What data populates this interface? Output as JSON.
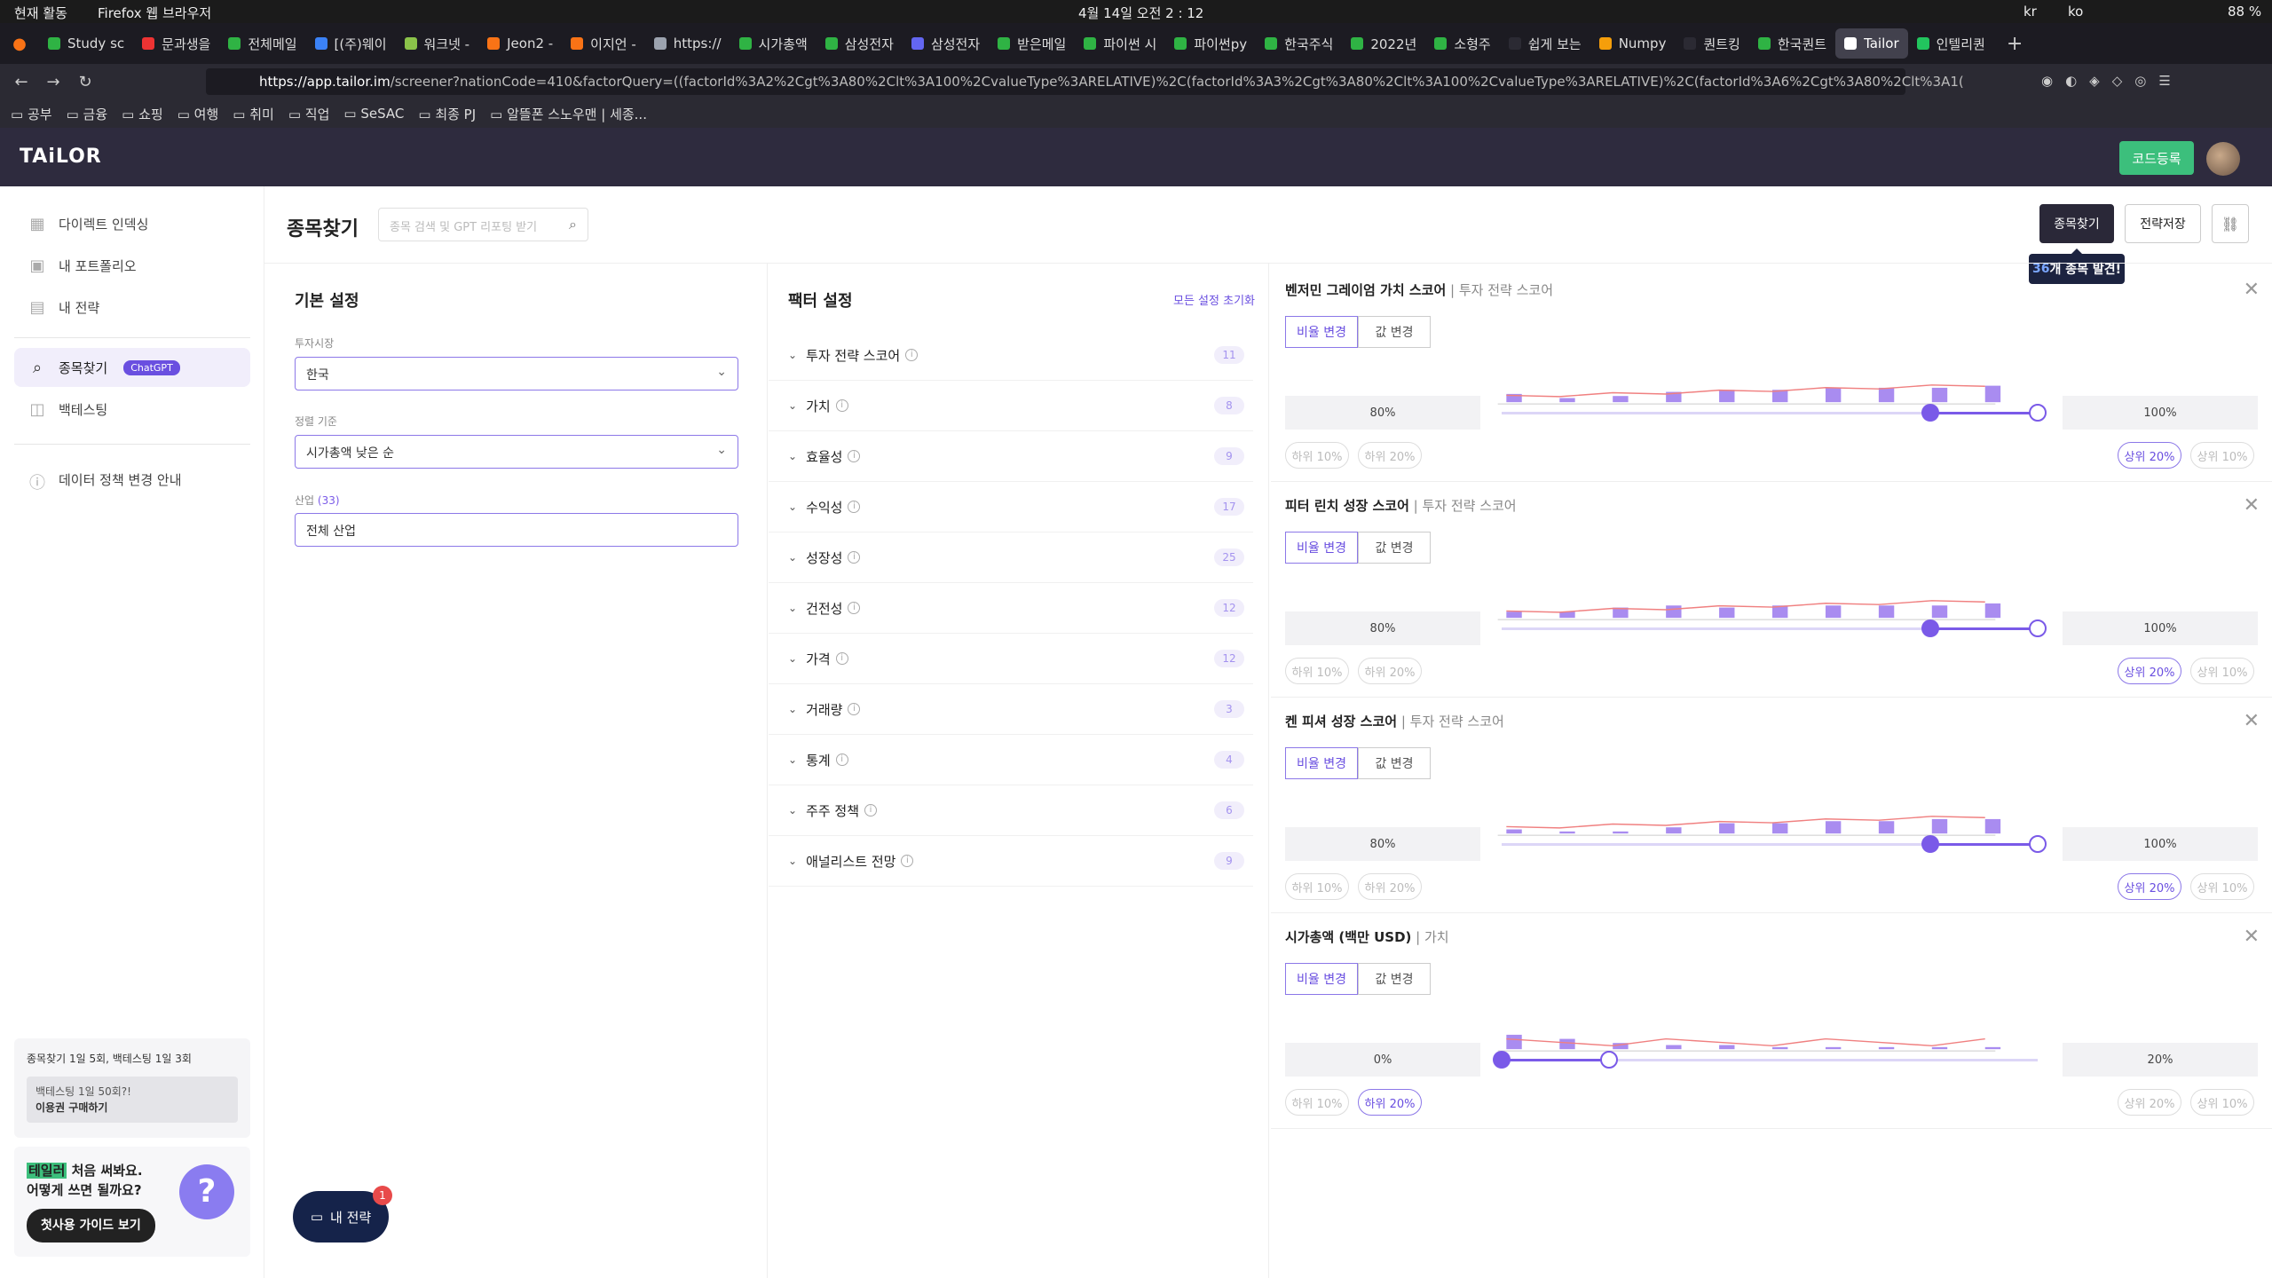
{
  "os": {
    "activity": "현재 활동",
    "app": "Firefox 웹 브라우저",
    "clock": "4월 14일 오전 2 : 12",
    "lang": "kr",
    "ime": "ko",
    "battery": "88 %"
  },
  "tabs": [
    {
      "label": "Study sc",
      "color": "#2fb344"
    },
    {
      "label": "문과생을",
      "color": "#e33"
    },
    {
      "label": "전체메일",
      "color": "#2fb344"
    },
    {
      "label": "[(주)웨이",
      "color": "#3b82f6"
    },
    {
      "label": "워크넷 - ",
      "color": "#8bc34a"
    },
    {
      "label": "Jeon2 - ",
      "color": "#f97316"
    },
    {
      "label": "이지언 - ",
      "color": "#f97316"
    },
    {
      "label": "https://",
      "color": "#9ca3af"
    },
    {
      "label": "시가총액",
      "color": "#2fb344"
    },
    {
      "label": "삼성전자",
      "color": "#2fb344"
    },
    {
      "label": "삼성전자",
      "color": "#6366f1"
    },
    {
      "label": "받은메일",
      "color": "#2fb344"
    },
    {
      "label": "파이썬 시",
      "color": "#2fb344"
    },
    {
      "label": "파이썬py",
      "color": "#2fb344"
    },
    {
      "label": "한국주식",
      "color": "#2fb344"
    },
    {
      "label": "2022년 ",
      "color": "#2fb344"
    },
    {
      "label": "소형주 ",
      "color": "#2fb344"
    },
    {
      "label": "쉽게 보는 ",
      "color": "#2b2a33"
    },
    {
      "label": "Numpy ",
      "color": "#f59e0b"
    },
    {
      "label": "퀀트킹",
      "color": "#2b2a33"
    },
    {
      "label": "한국퀀트",
      "color": "#2fb344"
    },
    {
      "label": "Tailor",
      "color": "#ffffff",
      "active": true
    },
    {
      "label": "인텔리퀀",
      "color": "#22c55e"
    }
  ],
  "url": {
    "host": "https://app.tailor.im",
    "path": "/screener?nationCode=410&factorQuery=((factorId%3A2%2Cgt%3A80%2Clt%3A100%2CvalueType%3ARELATIVE)%2C(factorId%3A3%2Cgt%3A80%2Clt%3A100%2CvalueType%3ARELATIVE)%2C(factorId%3A6%2Cgt%3A80%2Clt%3A1("
  },
  "bookmarks": [
    "공부",
    "금융",
    "쇼핑",
    "여행",
    "취미",
    "직업",
    "SeSAC",
    "최종 PJ",
    "알뜰폰 스노우맨 | 세종..."
  ],
  "header": {
    "logo": "TAiLOR",
    "code_btn": "코드등록"
  },
  "sidebar": {
    "items": [
      {
        "label": "다이렉트 인덱싱",
        "icon": "grid-icon"
      },
      {
        "label": "내 포트폴리오",
        "icon": "briefcase-icon"
      },
      {
        "label": "내 전략",
        "icon": "folder-icon"
      },
      {
        "label": "종목찾기",
        "icon": "search-icon",
        "badge": "ChatGPT"
      },
      {
        "label": "백테스팅",
        "icon": "chart-icon"
      },
      {
        "label": "데이터 정책 변경 안내",
        "icon": "info-icon"
      }
    ],
    "limit_text": "종목찾기 1일 5회, 백테스팅 1일 3회",
    "limit_btn_line1": "백테스팅 1일 50회?!",
    "limit_btn_line2": "이용권 구매하기",
    "guide_hl": "테일러",
    "guide_line1": " 처음 써봐요.",
    "guide_line2": "어떻게 쓰면 될까요?",
    "guide_btn": "첫사용 가이드 보기",
    "fab": "내 전략",
    "fab_count": "1"
  },
  "page": {
    "title": "종목찾기",
    "search_placeholder": "종목 검색 및 GPT 리포팅 받기",
    "btn_find": "종목찾기",
    "btn_save": "전략저장",
    "tooltip_num": "36",
    "tooltip_text": "개 종목 발견!"
  },
  "basic": {
    "title": "기본 설정",
    "market_label": "투자시장",
    "market": "한국",
    "sort_label": "정렬 기준",
    "sort": "시가총액 낮은 순",
    "industry_label": "산업",
    "industry_count": "(33)",
    "industry": "전체 산업"
  },
  "factors": {
    "title": "팩터 설정",
    "reset": "모든 설정 초기화",
    "rows": [
      {
        "label": "투자 전략 스코어",
        "count": "11"
      },
      {
        "label": "가치",
        "count": "8"
      },
      {
        "label": "효율성",
        "count": "9"
      },
      {
        "label": "수익성",
        "count": "17"
      },
      {
        "label": "성장성",
        "count": "25"
      },
      {
        "label": "건전성",
        "count": "12"
      },
      {
        "label": "가격",
        "count": "12"
      },
      {
        "label": "거래량",
        "count": "3"
      },
      {
        "label": "통계",
        "count": "4"
      },
      {
        "label": "주주 정책",
        "count": "6"
      },
      {
        "label": "애널리스트 전망",
        "count": "9"
      }
    ]
  },
  "cards": [
    {
      "title": "벤저민 그레이엄 가치 스코어",
      "sub": " | 투자 전략 스코어",
      "toggle_a": "비율 변경",
      "toggle_b": "값 변경",
      "low": "80%",
      "high": "100%",
      "range": [
        80,
        100
      ],
      "pills": [
        "하위 10%",
        "하위 20%",
        "상위 20%",
        "상위 10%"
      ],
      "active_pill": 2
    },
    {
      "title": "피터 린치 성장 스코어",
      "sub": " | 투자 전략 스코어",
      "toggle_a": "비율 변경",
      "toggle_b": "값 변경",
      "low": "80%",
      "high": "100%",
      "range": [
        80,
        100
      ],
      "pills": [
        "하위 10%",
        "하위 20%",
        "상위 20%",
        "상위 10%"
      ],
      "active_pill": 2
    },
    {
      "title": "켄 피셔 성장 스코어",
      "sub": " | 투자 전략 스코어",
      "toggle_a": "비율 변경",
      "toggle_b": "값 변경",
      "low": "80%",
      "high": "100%",
      "range": [
        80,
        100
      ],
      "pills": [
        "하위 10%",
        "하위 20%",
        "상위 20%",
        "상위 10%"
      ],
      "active_pill": 2
    },
    {
      "title": "시가총액 (백만 USD)",
      "sub": " | 가치",
      "toggle_a": "비율 변경",
      "toggle_b": "값 변경",
      "low": "0%",
      "high": "20%",
      "range": [
        0,
        20
      ],
      "pills": [
        "하위 10%",
        "하위 20%",
        "상위 20%",
        "상위 10%"
      ],
      "active_pill": 1
    }
  ],
  "colors": {
    "accent": "#7a5ae8",
    "brand_green": "#3cbf7c",
    "header_bg": "#2e2b3e"
  }
}
